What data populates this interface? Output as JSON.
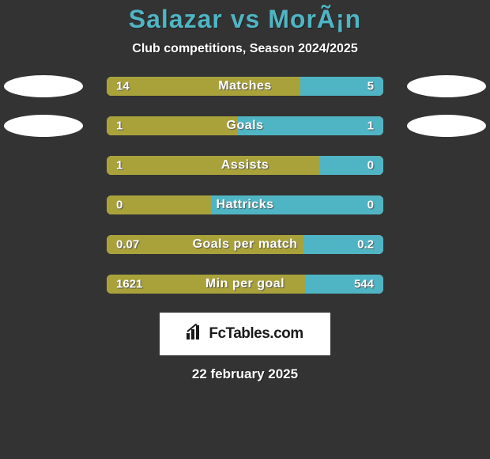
{
  "title_left": "Salazar",
  "title_vs": "vs",
  "title_right": "MorÃ¡n",
  "title_color": "#4fb5c4",
  "subtitle": "Club competitions, Season 2024/2025",
  "background_color": "#333333",
  "bar_track_color": "#ffffff",
  "player1_color": "#a9a23b",
  "player2_color": "#4fb5c4",
  "avatar_colors": [
    "#ffffff",
    "#ffffff"
  ],
  "stats": [
    {
      "label": "Matches",
      "left_val": "14",
      "right_val": "5",
      "left_pct": 70,
      "left_color": "#a9a23b",
      "right_color": "#4fb5c4",
      "show_avatars": true
    },
    {
      "label": "Goals",
      "left_val": "1",
      "right_val": "1",
      "left_pct": 47,
      "left_color": "#a9a23b",
      "right_color": "#4fb5c4",
      "show_avatars": true
    },
    {
      "label": "Assists",
      "left_val": "1",
      "right_val": "0",
      "left_pct": 77,
      "left_color": "#a9a23b",
      "right_color": "#4fb5c4",
      "show_avatars": false
    },
    {
      "label": "Hattricks",
      "left_val": "0",
      "right_val": "0",
      "left_pct": 38,
      "left_color": "#a9a23b",
      "right_color": "#4fb5c4",
      "show_avatars": false
    },
    {
      "label": "Goals per match",
      "left_val": "0.07",
      "right_val": "0.2",
      "left_pct": 71,
      "left_color": "#a9a23b",
      "right_color": "#4fb5c4",
      "show_avatars": false
    },
    {
      "label": "Min per goal",
      "left_val": "1621",
      "right_val": "544",
      "left_pct": 72,
      "left_color": "#a9a23b",
      "right_color": "#4fb5c4",
      "show_avatars": false
    }
  ],
  "branding_text": "FcTables.com",
  "date_text": "22 february 2025",
  "typography": {
    "title_fontsize": 32,
    "subtitle_fontsize": 16,
    "stat_label_fontsize": 16,
    "value_fontsize": 15,
    "date_fontsize": 17
  }
}
